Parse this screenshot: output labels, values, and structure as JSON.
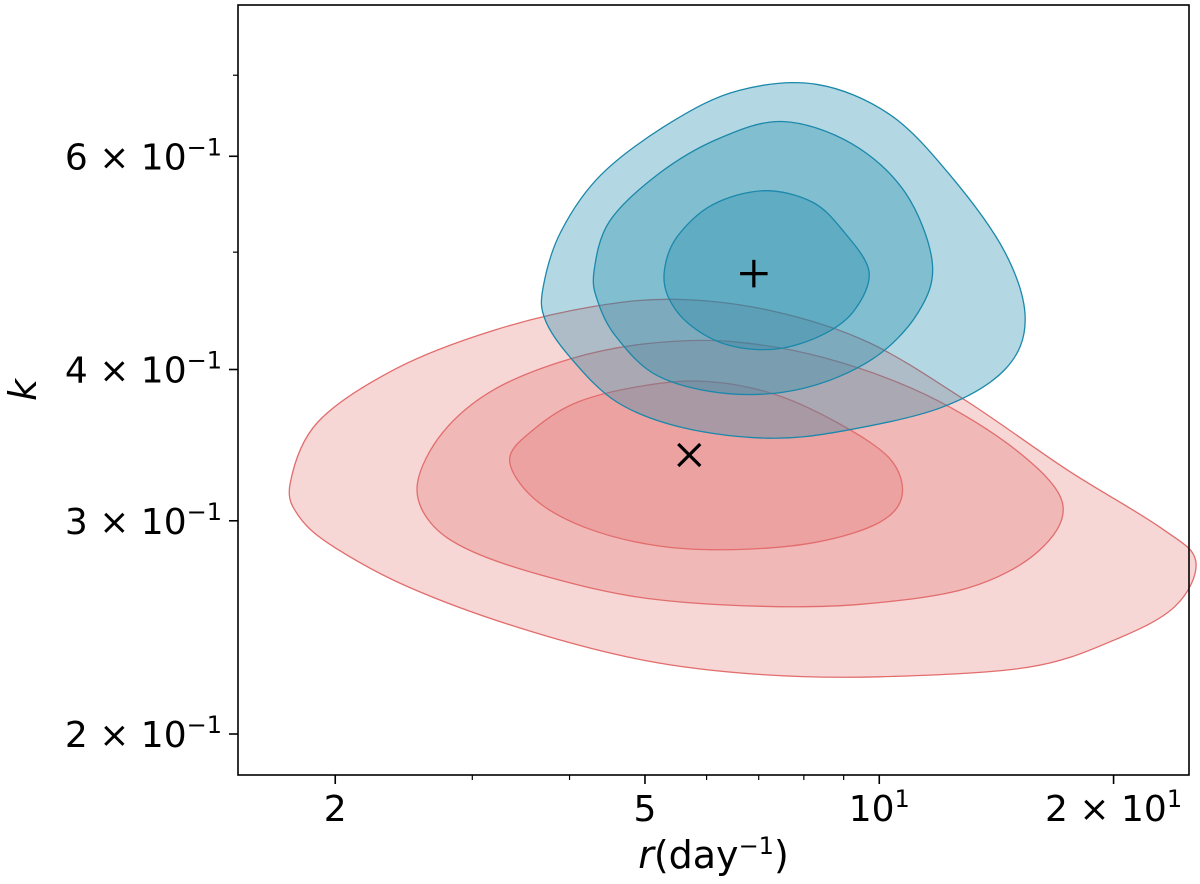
{
  "chart_data": {
    "type": "contour",
    "xscale": "log",
    "yscale": "log",
    "xlabel": {
      "italic": "r",
      "plain": "(day",
      "sup": "−1",
      "close": ")"
    },
    "ylabel": "k",
    "xlim": [
      1.5,
      25
    ],
    "ylim": [
      0.185,
      0.8
    ],
    "grid": false,
    "x_major_ticks": [
      {
        "value": 2,
        "label": "2"
      },
      {
        "value": 5,
        "label": "5"
      },
      {
        "value": 10,
        "label": "10",
        "exp": "1"
      },
      {
        "value": 20,
        "label": "2 × 10",
        "exp": "1"
      }
    ],
    "y_major_ticks": [
      {
        "value": 0.2,
        "label": "2 × 10",
        "exp": "−1"
      },
      {
        "value": 0.3,
        "label": "3 × 10",
        "exp": "−1"
      },
      {
        "value": 0.4,
        "label": "4 × 10",
        "exp": "−1"
      },
      {
        "value": 0.6,
        "label": "6 × 10",
        "exp": "−1"
      }
    ],
    "series": [
      {
        "color": "#e26d6d",
        "marker": "x",
        "center": [
          5.7,
          0.34
        ],
        "levels": [
          {
            "fill_opacity": 0.28,
            "points": [
              [
                1.75,
                0.322
              ],
              [
                1.9,
                0.362
              ],
              [
                2.4,
                0.401
              ],
              [
                3.2,
                0.431
              ],
              [
                4.3,
                0.451
              ],
              [
                5.5,
                0.457
              ],
              [
                7.3,
                0.447
              ],
              [
                9.7,
                0.421
              ],
              [
                13.0,
                0.376
              ],
              [
                17.5,
                0.33
              ],
              [
                23.0,
                0.296
              ],
              [
                25.5,
                0.278
              ],
              [
                24.0,
                0.255
              ],
              [
                20.0,
                0.239
              ],
              [
                15.5,
                0.227
              ],
              [
                10.0,
                0.223
              ],
              [
                7.0,
                0.224
              ],
              [
                5.0,
                0.23
              ],
              [
                3.5,
                0.244
              ],
              [
                2.5,
                0.264
              ],
              [
                2.0,
                0.285
              ],
              [
                1.8,
                0.302
              ]
            ]
          },
          {
            "fill_opacity": 0.28,
            "points": [
              [
                2.55,
                0.322
              ],
              [
                2.75,
                0.355
              ],
              [
                3.2,
                0.385
              ],
              [
                4.0,
                0.408
              ],
              [
                5.0,
                0.42
              ],
              [
                6.4,
                0.422
              ],
              [
                8.5,
                0.409
              ],
              [
                11.5,
                0.381
              ],
              [
                15.0,
                0.343
              ],
              [
                17.2,
                0.31
              ],
              [
                16.0,
                0.283
              ],
              [
                13.0,
                0.264
              ],
              [
                9.5,
                0.256
              ],
              [
                7.0,
                0.255
              ],
              [
                5.0,
                0.259
              ],
              [
                3.8,
                0.269
              ],
              [
                3.0,
                0.283
              ],
              [
                2.65,
                0.299
              ]
            ]
          },
          {
            "fill_opacity": 0.28,
            "points": [
              [
                3.35,
                0.337
              ],
              [
                3.6,
                0.357
              ],
              [
                4.1,
                0.376
              ],
              [
                5.0,
                0.388
              ],
              [
                6.0,
                0.391
              ],
              [
                7.3,
                0.382
              ],
              [
                8.8,
                0.362
              ],
              [
                10.3,
                0.338
              ],
              [
                10.7,
                0.315
              ],
              [
                10.0,
                0.299
              ],
              [
                8.3,
                0.288
              ],
              [
                6.5,
                0.284
              ],
              [
                5.2,
                0.286
              ],
              [
                4.2,
                0.296
              ],
              [
                3.6,
                0.313
              ]
            ]
          }
        ]
      },
      {
        "color": "#1a88aa",
        "marker": "+",
        "center": [
          6.9,
          0.48
        ],
        "levels": [
          {
            "fill_opacity": 0.33,
            "points": [
              [
                3.7,
                0.468
              ],
              [
                3.9,
                0.52
              ],
              [
                4.4,
                0.58
              ],
              [
                5.4,
                0.64
              ],
              [
                6.6,
                0.68
              ],
              [
                8.3,
                0.688
              ],
              [
                10.3,
                0.65
              ],
              [
                12.3,
                0.58
              ],
              [
                14.5,
                0.5
              ],
              [
                15.4,
                0.44
              ],
              [
                14.5,
                0.4
              ],
              [
                12.0,
                0.372
              ],
              [
                9.0,
                0.356
              ],
              [
                7.2,
                0.351
              ],
              [
                5.6,
                0.358
              ],
              [
                4.6,
                0.376
              ],
              [
                4.0,
                0.41
              ],
              [
                3.72,
                0.44
              ]
            ]
          },
          {
            "fill_opacity": 0.33,
            "points": [
              [
                4.3,
                0.482
              ],
              [
                4.5,
                0.53
              ],
              [
                5.2,
                0.58
              ],
              [
                6.2,
                0.62
              ],
              [
                7.5,
                0.641
              ],
              [
                9.2,
                0.615
              ],
              [
                10.8,
                0.56
              ],
              [
                11.7,
                0.49
              ],
              [
                11.2,
                0.445
              ],
              [
                9.8,
                0.408
              ],
              [
                8.0,
                0.386
              ],
              [
                6.4,
                0.382
              ],
              [
                5.2,
                0.395
              ],
              [
                4.6,
                0.425
              ],
              [
                4.35,
                0.455
              ]
            ]
          },
          {
            "fill_opacity": 0.33,
            "points": [
              [
                5.3,
                0.485
              ],
              [
                5.5,
                0.515
              ],
              [
                6.1,
                0.547
              ],
              [
                7.1,
                0.562
              ],
              [
                8.2,
                0.55
              ],
              [
                9.0,
                0.52
              ],
              [
                9.7,
                0.482
              ],
              [
                9.3,
                0.448
              ],
              [
                8.5,
                0.428
              ],
              [
                7.4,
                0.416
              ],
              [
                6.4,
                0.419
              ],
              [
                5.7,
                0.436
              ],
              [
                5.35,
                0.46
              ]
            ]
          }
        ]
      }
    ]
  }
}
